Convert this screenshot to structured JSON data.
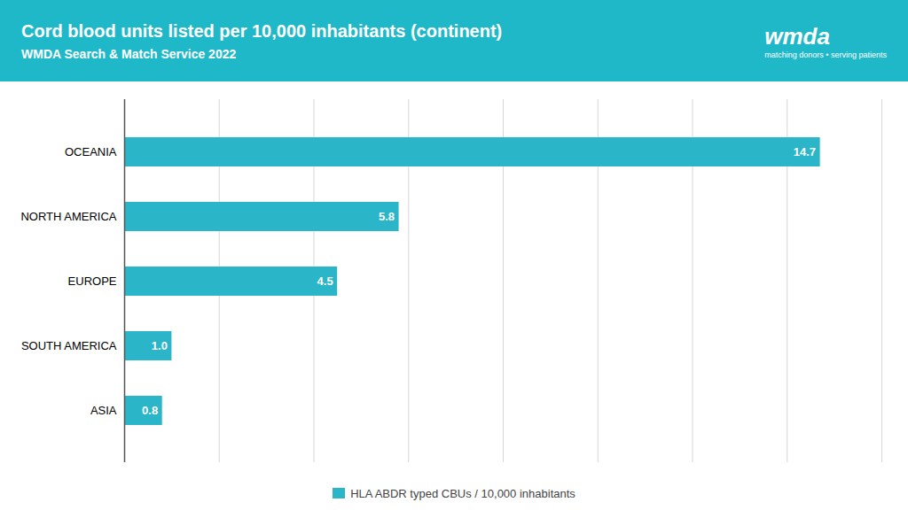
{
  "chart_data": {
    "type": "bar",
    "orientation": "horizontal",
    "title": "Cord blood units listed per 10,000 inhabitants (continent)",
    "subtitle": "WMDA Search & Match Service 2022",
    "annotations": [
      "wmda",
      "matching donors • serving patients"
    ],
    "categories": [
      "OCEANIA",
      "NORTH AMERICA",
      "EUROPE",
      "SOUTH AMERICA",
      "ASIA"
    ],
    "series": [
      {
        "name": "HLA ABDR typed CBUs / 10,000 inhabitants",
        "color": "#2ab5c8",
        "values": [
          14.7,
          5.8,
          4.5,
          1.0,
          0.8
        ],
        "value_labels": [
          "14.7",
          "5.8",
          "4.5",
          "1.0",
          "0.8"
        ]
      }
    ],
    "xlim": [
      0,
      16
    ],
    "xticks": [
      0,
      2,
      4,
      6,
      8,
      10,
      12,
      14,
      16
    ],
    "grid": true,
    "tick_labels": "y",
    "data_labels": true,
    "legend": "bottom"
  }
}
